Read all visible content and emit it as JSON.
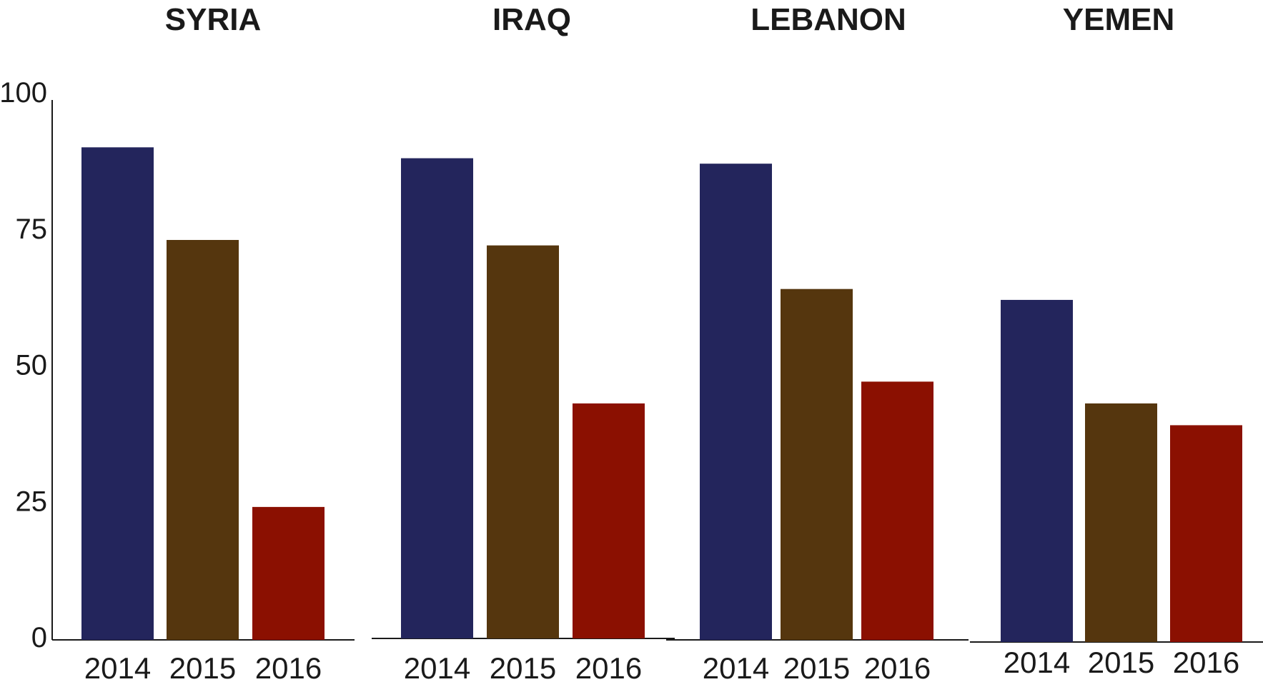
{
  "chart_data": {
    "type": "bar",
    "ylim": [
      0,
      100
    ],
    "yticks": [
      0,
      25,
      50,
      75,
      100
    ],
    "grid": false,
    "legend": "none",
    "colors": {
      "2014": "#23255c",
      "2015": "#55360e",
      "2016": "#8b1001"
    },
    "panels": [
      {
        "title": "SYRIA",
        "categories": [
          "2014",
          "2015",
          "2016"
        ],
        "values": [
          90,
          73,
          24
        ]
      },
      {
        "title": "IRAQ",
        "categories": [
          "2014",
          "2015",
          "2016"
        ],
        "values": [
          88,
          72,
          43
        ]
      },
      {
        "title": "LEBANON",
        "categories": [
          "2014",
          "2015",
          "2016"
        ],
        "values": [
          87,
          64,
          47
        ]
      },
      {
        "title": "YEMEN",
        "categories": [
          "2014",
          "2015",
          "2016"
        ],
        "values": [
          62,
          43,
          39
        ]
      }
    ]
  }
}
